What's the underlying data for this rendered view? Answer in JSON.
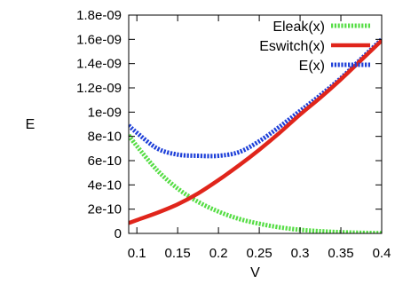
{
  "chart_data": {
    "type": "line",
    "title": "",
    "xlabel": "V",
    "ylabel": "E",
    "xlim": [
      0.09,
      0.4
    ],
    "ylim": [
      0,
      1.8e-09
    ],
    "xticks": [
      {
        "value": 0.1,
        "label": "0.1"
      },
      {
        "value": 0.15,
        "label": "0.15"
      },
      {
        "value": 0.2,
        "label": "0.2"
      },
      {
        "value": 0.25,
        "label": "0.25"
      },
      {
        "value": 0.3,
        "label": "0.3"
      },
      {
        "value": 0.35,
        "label": "0.35"
      },
      {
        "value": 0.4,
        "label": "0.4"
      }
    ],
    "yticks": [
      {
        "value": 0,
        "label": "0"
      },
      {
        "value": 2e-10,
        "label": "2e-10"
      },
      {
        "value": 4e-10,
        "label": "4e-10"
      },
      {
        "value": 6e-10,
        "label": "6e-10"
      },
      {
        "value": 8e-10,
        "label": "8e-10"
      },
      {
        "value": 1e-09,
        "label": "1e-09"
      },
      {
        "value": 1.2e-09,
        "label": "1.2e-09"
      },
      {
        "value": 1.4e-09,
        "label": "1.4e-09"
      },
      {
        "value": 1.6e-09,
        "label": "1.6e-09"
      },
      {
        "value": 1.8e-09,
        "label": "1.8e-09"
      }
    ],
    "grid": false,
    "legend_position": "top-right",
    "x": [
      0.09,
      0.1,
      0.125,
      0.15,
      0.175,
      0.2,
      0.225,
      0.25,
      0.275,
      0.3,
      0.325,
      0.35,
      0.375,
      0.4
    ],
    "series": [
      {
        "name": "Eleak(x)",
        "color": "#55dd44",
        "style": "dotted",
        "values": [
          8.1e-10,
          7.2e-10,
          5.2e-10,
          3.7e-10,
          2.6e-10,
          1.8e-10,
          1.2e-10,
          8e-11,
          5e-11,
          3e-11,
          1.8e-11,
          1e-11,
          5e-12,
          2e-12
        ]
      },
      {
        "name": "Eswitch(x)",
        "color": "#e0251b",
        "style": "solid",
        "values": [
          8.5e-11,
          1.1e-10,
          1.7e-10,
          2.4e-10,
          3.3e-10,
          4.4e-10,
          5.6e-10,
          6.9e-10,
          8.3e-10,
          9.8e-10,
          1.12e-09,
          1.27e-09,
          1.43e-09,
          1.59e-09
        ]
      },
      {
        "name": "E(x)",
        "color": "#1d3fd8",
        "style": "dotted",
        "values": [
          8.9e-10,
          8.3e-10,
          7e-10,
          6.5e-10,
          6.4e-10,
          6.4e-10,
          6.7e-10,
          7.6e-10,
          8.8e-10,
          1.01e-09,
          1.14e-09,
          1.28e-09,
          1.44e-09,
          1.6e-09
        ]
      }
    ]
  }
}
